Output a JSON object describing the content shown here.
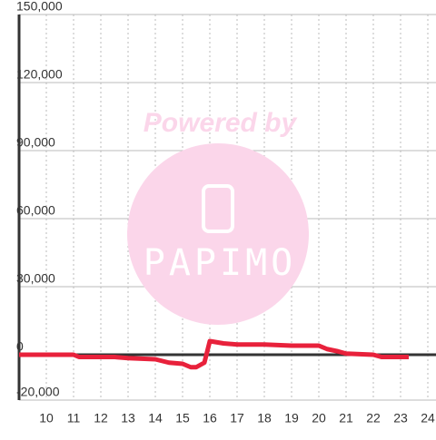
{
  "chart_data": {
    "type": "line",
    "x": [
      9,
      11,
      11.2,
      12.5,
      13,
      14,
      14.5,
      15,
      15.3,
      15.5,
      15.8,
      16,
      16.5,
      17,
      18,
      19,
      20,
      20.3,
      20.7,
      21,
      22,
      22.3,
      23.3
    ],
    "series": [
      {
        "color": "#e8213b",
        "values": [
          0,
          0,
          -1000,
          -1000,
          -1500,
          -2000,
          -3500,
          -4000,
          -5500,
          -5500,
          -3500,
          6000,
          5000,
          4500,
          4500,
          4000,
          4000,
          2500,
          1500,
          500,
          0,
          -1000,
          -1000
        ]
      }
    ],
    "xlim": [
      9,
      24.3
    ],
    "xticks": [
      10,
      11,
      12,
      13,
      14,
      15,
      16,
      17,
      18,
      19,
      20,
      21,
      22,
      23,
      24
    ],
    "ylim": [
      -20000,
      150000
    ],
    "yticks": [
      {
        "value": -20000,
        "label": "-20,000"
      },
      0,
      {
        "value": 30000,
        "label": "30,000"
      },
      {
        "value": 60000,
        "label": "60,000"
      },
      {
        "value": 90000,
        "label": "90,000"
      },
      {
        "value": 120000,
        "label": "120,000"
      },
      {
        "value": 150000,
        "label": "150,000"
      }
    ],
    "grid": true
  },
  "watermark": {
    "caption": "Powered by",
    "logo": "PAPIMO"
  }
}
